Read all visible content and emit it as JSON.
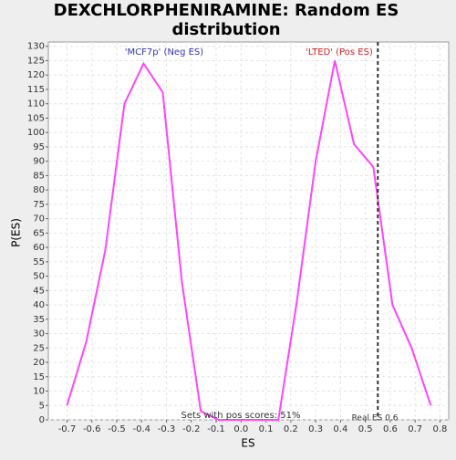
{
  "chart_data": {
    "type": "line",
    "title": "DEXCHLORPHENIRAMINE: Random ES distribution",
    "x_label": "ES",
    "y_label": "P(ES)",
    "x": [
      -0.7,
      -0.623,
      -0.546,
      -0.469,
      -0.392,
      -0.315,
      -0.238,
      -0.162,
      -0.09,
      0.15,
      0.224,
      0.3,
      0.377,
      0.454,
      0.532,
      0.609,
      0.686,
      0.763
    ],
    "values": [
      5,
      27,
      59,
      110,
      124,
      114,
      48,
      3,
      0,
      0,
      41,
      90,
      125,
      96,
      88,
      40,
      25,
      5
    ],
    "color": "#ff44ff",
    "xlim": [
      -0.775,
      0.835
    ],
    "ylim": [
      0,
      131.5
    ],
    "xticks": [
      -0.7,
      -0.6,
      -0.5,
      -0.4,
      -0.3,
      -0.2,
      -0.1,
      {
        "value": 0,
        "label": "0.0"
      },
      0.1,
      0.2,
      0.3,
      0.4,
      0.5,
      0.6,
      0.7,
      0.8
    ],
    "yticks": [
      0,
      5,
      10,
      15,
      20,
      25,
      30,
      35,
      40,
      45,
      50,
      55,
      60,
      65,
      70,
      75,
      80,
      85,
      90,
      95,
      100,
      105,
      110,
      115,
      120,
      125,
      130
    ],
    "grid": true,
    "real_es": 0.55,
    "annotations": {
      "neg": "'MCF7p' (Neg ES)",
      "pos": "'LTED' (Pos ES)",
      "pos_scores": "Sets with pos scores: 51%",
      "real_es": "Real ES 0.6"
    }
  }
}
